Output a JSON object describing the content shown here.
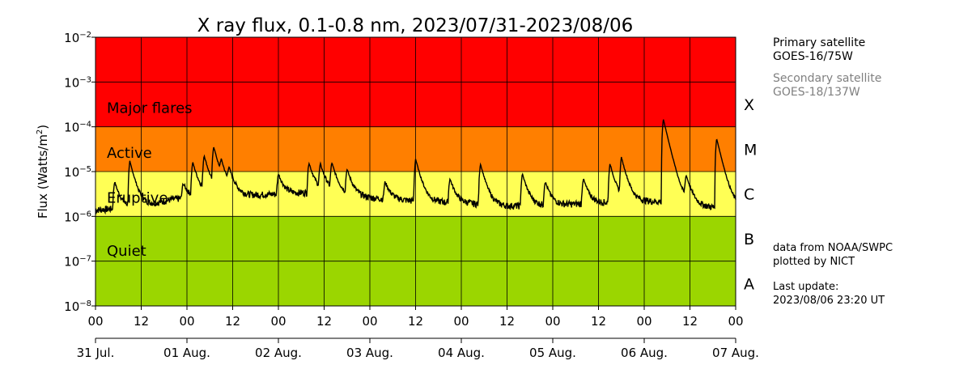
{
  "chart_data": {
    "type": "line",
    "title": "X ray flux, 0.1-0.8 nm, 2023/07/31-2023/08/06",
    "ylabel_base": "Flux (Watts/m",
    "ylabel_sup": "2",
    "ylabel_close": ")",
    "yscale": "log",
    "ylim": [
      1e-08,
      0.01
    ],
    "y_ticks": [
      {
        "exp": -8,
        "base": "10",
        "sup": "−8"
      },
      {
        "exp": -7,
        "base": "10",
        "sup": "−7"
      },
      {
        "exp": -6,
        "base": "10",
        "sup": "−6"
      },
      {
        "exp": -5,
        "base": "10",
        "sup": "−5"
      },
      {
        "exp": -4,
        "base": "10",
        "sup": "−4"
      },
      {
        "exp": -3,
        "base": "10",
        "sup": "−3"
      },
      {
        "exp": -2,
        "base": "10",
        "sup": "−2"
      }
    ],
    "xlim_hours": [
      0,
      168
    ],
    "hour_ticks": [
      "00",
      "12",
      "00",
      "12",
      "00",
      "12",
      "00",
      "12",
      "00",
      "12",
      "00",
      "12",
      "00",
      "12",
      "00"
    ],
    "day_ticks": [
      "31 Jul.",
      "01 Aug.",
      "02 Aug.",
      "03 Aug.",
      "04 Aug.",
      "05 Aug.",
      "06 Aug.",
      "07 Aug."
    ],
    "bands": [
      {
        "label": "Major flares",
        "from": 0.0001,
        "to": 0.01,
        "color": "#ff0000"
      },
      {
        "label": "Active",
        "from": 1e-05,
        "to": 0.0001,
        "color": "#ff7f00"
      },
      {
        "label": "Eruptive",
        "from": 1e-06,
        "to": 1e-05,
        "color": "#ffff55"
      },
      {
        "label": "Quiet",
        "from": 1e-08,
        "to": 1e-06,
        "color": "#9bd600"
      }
    ],
    "classes": [
      {
        "label": "X",
        "exp": -3.5
      },
      {
        "label": "M",
        "exp": -4.5
      },
      {
        "label": "C",
        "exp": -5.5
      },
      {
        "label": "B",
        "exp": -6.5
      },
      {
        "label": "A",
        "exp": -7.5
      }
    ],
    "grid": true,
    "series": [
      {
        "color": "#000000",
        "background": 1.6e-06,
        "baseline": [
          [
            0,
            1.4e-06
          ],
          [
            6,
            1.5e-06
          ],
          [
            15,
            1.9e-06
          ],
          [
            20,
            2.4e-06
          ],
          [
            24,
            2.6e-06
          ],
          [
            32,
            3.4e-06
          ],
          [
            40,
            3e-06
          ],
          [
            50,
            3.2e-06
          ],
          [
            60,
            3.6e-06
          ],
          [
            66,
            3e-06
          ],
          [
            72,
            2.6e-06
          ],
          [
            84,
            2.2e-06
          ],
          [
            96,
            2e-06
          ],
          [
            108,
            1.7e-06
          ],
          [
            120,
            1.8e-06
          ],
          [
            132,
            2e-06
          ],
          [
            144,
            2.2e-06
          ],
          [
            150,
            2.1e-06
          ],
          [
            156,
            1.8e-06
          ],
          [
            162,
            1.6e-06
          ],
          [
            168,
            1.6e-06
          ]
        ],
        "peaks": [
          [
            5,
            6e-06
          ],
          [
            9,
            1.7e-05
          ],
          [
            23,
            5.5e-06
          ],
          [
            25.5,
            1.6e-05
          ],
          [
            28.5,
            2.2e-05
          ],
          [
            31,
            3.4e-05
          ],
          [
            33,
            1.3e-05
          ],
          [
            35,
            1e-05
          ],
          [
            48,
            9e-06
          ],
          [
            56,
            1.6e-05
          ],
          [
            59,
            1.4e-05
          ],
          [
            62,
            1.5e-05
          ],
          [
            66,
            1.1e-05
          ],
          [
            76,
            6e-06
          ],
          [
            84,
            1.9e-05
          ],
          [
            93,
            7e-06
          ],
          [
            101,
            1.5e-05
          ],
          [
            112,
            9e-06
          ],
          [
            118,
            6e-06
          ],
          [
            128,
            7e-06
          ],
          [
            135,
            1.5e-05
          ],
          [
            138,
            2e-05
          ],
          [
            149,
            0.00015
          ],
          [
            155,
            7.5e-06
          ],
          [
            163,
            5.5e-05
          ]
        ]
      }
    ]
  },
  "side_info": {
    "primary_label": "Primary satellite",
    "primary_value": "GOES-16/75W",
    "secondary_label": "Secondary satellite",
    "secondary_value": "GOES-18/137W",
    "source_line1": "data from NOAA/SWPC",
    "source_line2": "plotted by NICT",
    "update_label": "Last update:",
    "update_value": "2023/08/06 23:20 UT"
  }
}
